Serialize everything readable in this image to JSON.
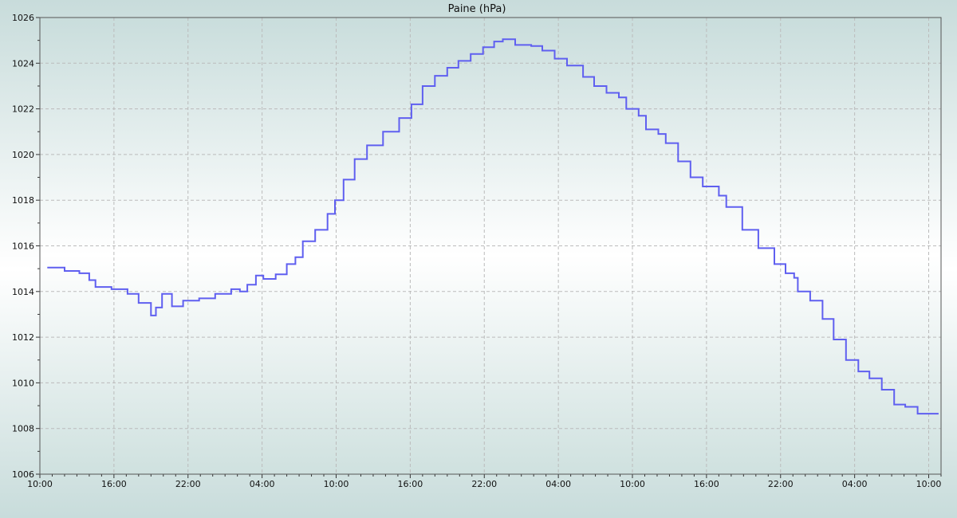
{
  "chart_data": {
    "type": "line",
    "title": "Paine (hPa)",
    "xlabel": "",
    "ylabel": "",
    "ylim": [
      1006,
      1026
    ],
    "y_ticks": [
      1006,
      1008,
      1010,
      1012,
      1014,
      1016,
      1018,
      1020,
      1022,
      1024,
      1026
    ],
    "x_ticks": [
      "10:00",
      "16:00",
      "22:00",
      "04:00",
      "10:00",
      "16:00",
      "22:00",
      "04:00",
      "10:00",
      "16:00",
      "22:00",
      "04:00",
      "10:00"
    ],
    "xlim": [
      "10:00",
      "11:00"
    ],
    "grid": true,
    "line_style": "step",
    "colors": {
      "line": "#5f5ff0",
      "grid": "#bbbbbb",
      "axis": "#555555"
    },
    "series": [
      {
        "x": [
          "10:36",
          "12:00",
          "13:12",
          "14:00",
          "14:30",
          "15:48",
          "17:06",
          "18:00",
          "19:00",
          "19:24",
          "19:54",
          "20:42",
          "21:36",
          "22:54",
          "00:12",
          "01:30",
          "02:12",
          "02:48",
          "03:30",
          "04:06",
          "05:06",
          "06:00",
          "06:42",
          "07:18",
          "08:18",
          "09:18",
          "09:54",
          "10:36",
          "11:30",
          "12:30",
          "13:48",
          "15:06",
          "16:06",
          "17:00",
          "18:00",
          "19:00",
          "19:54",
          "20:54",
          "21:54",
          "22:48",
          "23:30",
          "00:30",
          "01:48",
          "02:42",
          "03:42",
          "04:42",
          "06:00",
          "06:54",
          "07:54",
          "08:54",
          "09:30",
          "10:30",
          "11:06",
          "12:06",
          "12:42",
          "13:42",
          "14:42",
          "15:42",
          "17:00",
          "17:36",
          "18:54",
          "20:12",
          "21:30",
          "22:24",
          "23:06",
          "23:24",
          "00:24",
          "01:24",
          "02:18",
          "03:18",
          "04:18",
          "05:12",
          "06:12",
          "07:12",
          "08:06",
          "09:06",
          "10:48"
        ],
        "values": [
          1015.05,
          1014.9,
          1014.8,
          1014.5,
          1014.2,
          1014.1,
          1013.9,
          1013.5,
          1012.95,
          1013.3,
          1013.9,
          1013.35,
          1013.6,
          1013.7,
          1013.9,
          1014.1,
          1014.0,
          1014.3,
          1014.7,
          1014.55,
          1014.75,
          1015.2,
          1015.5,
          1016.2,
          1016.7,
          1017.4,
          1018.0,
          1018.9,
          1019.8,
          1020.4,
          1021.0,
          1021.6,
          1022.2,
          1023.0,
          1023.45,
          1023.8,
          1024.1,
          1024.4,
          1024.7,
          1024.95,
          1025.05,
          1024.8,
          1024.75,
          1024.55,
          1024.2,
          1023.9,
          1023.4,
          1023.0,
          1022.7,
          1022.5,
          1022.0,
          1021.7,
          1021.1,
          1020.9,
          1020.5,
          1019.7,
          1019.0,
          1018.6,
          1018.2,
          1017.7,
          1016.7,
          1015.9,
          1015.2,
          1014.8,
          1014.6,
          1014.0,
          1013.6,
          1012.8,
          1011.9,
          1011.0,
          1010.5,
          1010.2,
          1009.7,
          1009.05,
          1008.95,
          1008.65,
          1008.65
        ]
      }
    ]
  }
}
